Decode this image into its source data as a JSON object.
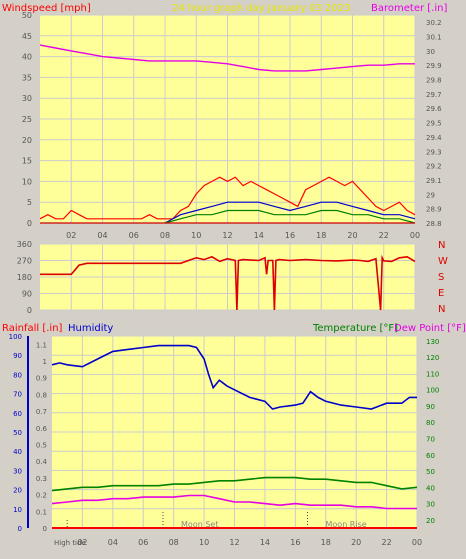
{
  "page": {
    "title": "24 hour graph day   January 03 2023",
    "background": "#d4d0c8",
    "plot_background": "#ffff99",
    "grid_color": "#c8c8c8",
    "colors": {
      "red": "#ff0000",
      "dark_red": "#cc0000",
      "blue": "#0000cc",
      "green": "#008000",
      "magenta": "#e600e6",
      "axis_text": "#666666",
      "title": "#e6e600"
    }
  },
  "chart_data": [
    {
      "id": "wind_baro",
      "type": "line",
      "title": "24 hour graph day   January 03 2023",
      "left_axis_label": "Windspeed [mph]",
      "right_axis_label": "Barometer [.in]",
      "ylim_left": [
        0,
        50
      ],
      "yticks_left": [
        "0",
        "5",
        "10",
        "15",
        "20",
        "25",
        "30",
        "35",
        "40",
        "45",
        "50"
      ],
      "ylim_right": [
        28.8,
        30.25
      ],
      "yticks_right": [
        "28.8",
        "28.9",
        "29",
        "29.1",
        "29.2",
        "29.3",
        "29.4",
        "29.5",
        "29.6",
        "29.7",
        "29.8",
        "29.9",
        "30",
        "30.1",
        "30.2"
      ],
      "xlim": [
        0,
        24
      ],
      "xticks": [
        "02",
        "04",
        "06",
        "08",
        "10",
        "12",
        "14",
        "16",
        "18",
        "20",
        "22",
        "00"
      ],
      "grid": true,
      "series": [
        {
          "name": "Barometer",
          "axis": "right",
          "color": "#e600e6",
          "x": [
            0,
            1,
            2,
            3,
            4,
            5,
            6,
            7,
            8,
            9,
            10,
            11,
            12,
            13,
            14,
            15,
            16,
            17,
            18,
            19,
            20,
            21,
            22,
            23,
            24
          ],
          "y": [
            30.04,
            30.02,
            30.0,
            29.98,
            29.96,
            29.95,
            29.94,
            29.93,
            29.93,
            29.93,
            29.93,
            29.92,
            29.91,
            29.89,
            29.87,
            29.86,
            29.86,
            29.86,
            29.87,
            29.88,
            29.89,
            29.9,
            29.9,
            29.91,
            29.91
          ]
        },
        {
          "name": "Wind gust",
          "axis": "left",
          "color": "#ff0000",
          "x": [
            0,
            0.5,
            1,
            1.5,
            2,
            2.5,
            3,
            3.5,
            4,
            4.5,
            5,
            5.5,
            6,
            6.5,
            7,
            7.5,
            8,
            8.5,
            9,
            9.5,
            10,
            10.5,
            11,
            11.5,
            12,
            12.5,
            13,
            13.5,
            14,
            14.5,
            15,
            15.5,
            16,
            16.5,
            17,
            17.5,
            18,
            18.5,
            19,
            19.5,
            20,
            20.5,
            21,
            21.5,
            22,
            22.5,
            23,
            23.5,
            24
          ],
          "y": [
            1,
            2,
            1,
            1,
            3,
            2,
            1,
            1,
            1,
            1,
            1,
            1,
            1,
            1,
            2,
            1,
            1,
            1,
            3,
            4,
            7,
            9,
            10,
            11,
            10,
            11,
            9,
            10,
            9,
            8,
            7,
            6,
            5,
            4,
            8,
            9,
            10,
            11,
            10,
            9,
            10,
            8,
            6,
            4,
            3,
            4,
            5,
            3,
            2
          ]
        },
        {
          "name": "Wind direction max",
          "axis": "left",
          "color": "#0000cc",
          "x": [
            8,
            9,
            10,
            11,
            12,
            13,
            14,
            15,
            16,
            17,
            18,
            19,
            20,
            21,
            22,
            23,
            24
          ],
          "y": [
            0,
            2,
            3,
            4,
            5,
            5,
            5,
            4,
            3,
            4,
            5,
            5,
            4,
            3,
            2,
            2,
            1
          ]
        },
        {
          "name": "Wind average",
          "axis": "left",
          "color": "#008000",
          "x": [
            8,
            9,
            10,
            11,
            12,
            13,
            14,
            15,
            16,
            17,
            18,
            19,
            20,
            21,
            22,
            23,
            24
          ],
          "y": [
            0,
            1,
            2,
            2,
            3,
            3,
            3,
            2,
            2,
            2,
            3,
            3,
            2,
            2,
            1,
            1,
            0
          ]
        },
        {
          "name": "Wind low",
          "axis": "left",
          "color": "#cc0000",
          "x": [
            0,
            24
          ],
          "y": [
            0,
            0
          ]
        }
      ]
    },
    {
      "id": "wind_dir",
      "type": "line",
      "ylim": [
        0,
        360
      ],
      "yticks": [
        "0",
        "90",
        "180",
        "270",
        "360"
      ],
      "compass_labels": [
        "N",
        "W",
        "S",
        "E",
        "N"
      ],
      "xlim": [
        0,
        24
      ],
      "grid": true,
      "series": [
        {
          "name": "Wind direction",
          "color": "#dd0000",
          "x": [
            0,
            1,
            2,
            2.5,
            3,
            4,
            6,
            8,
            9,
            9.5,
            10,
            10.5,
            11,
            11.5,
            12,
            12.5,
            12.6,
            12.7,
            13,
            14,
            14.4,
            14.5,
            14.6,
            14.9,
            15,
            15.1,
            15.3,
            16,
            17,
            18,
            19,
            20,
            20.5,
            21,
            21.5,
            21.8,
            21.9,
            22,
            22.5,
            23,
            23.5,
            24
          ],
          "y": [
            195,
            195,
            195,
            245,
            255,
            255,
            255,
            255,
            255,
            270,
            285,
            275,
            290,
            265,
            280,
            270,
            0,
            270,
            275,
            270,
            285,
            195,
            270,
            270,
            0,
            270,
            275,
            270,
            275,
            270,
            268,
            272,
            270,
            265,
            280,
            0,
            285,
            268,
            265,
            285,
            290,
            265
          ]
        }
      ]
    },
    {
      "id": "rain_hum_temp",
      "type": "line",
      "left_axis_label": "Rainfall [.in]",
      "left_axis_label2": "Humidity",
      "right_axis_label": "Temperature [°F]",
      "right_axis_label2": "Dew Point [°F]",
      "ylim_humidity": [
        0,
        100
      ],
      "yticks_humidity": [
        "0",
        "10",
        "20",
        "30",
        "40",
        "50",
        "60",
        "70",
        "80",
        "90",
        "100"
      ],
      "ylim_rain": [
        0,
        1.15
      ],
      "yticks_rain": [
        "0",
        "0.1",
        "0.2",
        "0.3",
        "0.4",
        "0.5",
        "0.6",
        "0.7",
        "0.8",
        "0.9",
        "1",
        "1.1"
      ],
      "ylim_temp": [
        15,
        133
      ],
      "yticks_temp": [
        "20",
        "30",
        "40",
        "50",
        "60",
        "70",
        "80",
        "90",
        "100",
        "110",
        "120",
        "130"
      ],
      "xlim": [
        0,
        24
      ],
      "xticks": [
        "02",
        "04",
        "06",
        "08",
        "10",
        "12",
        "14",
        "16",
        "18",
        "20",
        "22",
        "00"
      ],
      "annotations": [
        "Moon Set",
        "Moon Rise",
        "High tide"
      ],
      "grid": true,
      "series": [
        {
          "name": "Humidity",
          "axis": "humidity",
          "color": "#0000cc",
          "x": [
            0,
            0.5,
            1,
            2,
            3,
            4,
            5,
            6,
            7,
            8,
            9,
            9.5,
            10,
            10.3,
            10.6,
            11,
            11.5,
            12,
            13,
            14,
            14.5,
            15,
            16,
            16.5,
            17,
            17.5,
            18,
            19,
            20,
            21,
            22,
            23,
            23.5,
            24
          ],
          "y": [
            85,
            86,
            85,
            84,
            88,
            92,
            93,
            94,
            95,
            95,
            95,
            94,
            88,
            80,
            73,
            77,
            74,
            72,
            68,
            66,
            62,
            63,
            64,
            65,
            71,
            68,
            66,
            64,
            63,
            62,
            65,
            65,
            68,
            68
          ]
        },
        {
          "name": "Temperature",
          "axis": "temp",
          "color": "#008000",
          "x": [
            0,
            1,
            2,
            3,
            4,
            5,
            6,
            7,
            8,
            9,
            10,
            11,
            12,
            13,
            14,
            15,
            16,
            17,
            18,
            19,
            20,
            21,
            22,
            23,
            24
          ],
          "y": [
            38,
            39,
            40,
            40,
            41,
            41,
            41,
            41,
            42,
            42,
            43,
            44,
            44,
            45,
            46,
            46,
            46,
            45,
            45,
            44,
            43,
            43,
            41,
            39,
            40
          ]
        },
        {
          "name": "Dew Point",
          "axis": "temp",
          "color": "#e600e6",
          "x": [
            0,
            1,
            2,
            3,
            4,
            5,
            6,
            7,
            8,
            9,
            10,
            11,
            12,
            13,
            14,
            15,
            16,
            17,
            18,
            19,
            20,
            21,
            22,
            23,
            24
          ],
          "y": [
            30,
            31,
            32,
            32,
            33,
            33,
            34,
            34,
            34,
            35,
            35,
            33,
            31,
            31,
            30,
            29,
            30,
            29,
            29,
            29,
            28,
            28,
            27,
            27,
            27
          ]
        },
        {
          "name": "Rainfall",
          "axis": "rain",
          "color": "#ff0000",
          "x": [
            0,
            24
          ],
          "y": [
            0,
            0
          ]
        }
      ]
    }
  ]
}
